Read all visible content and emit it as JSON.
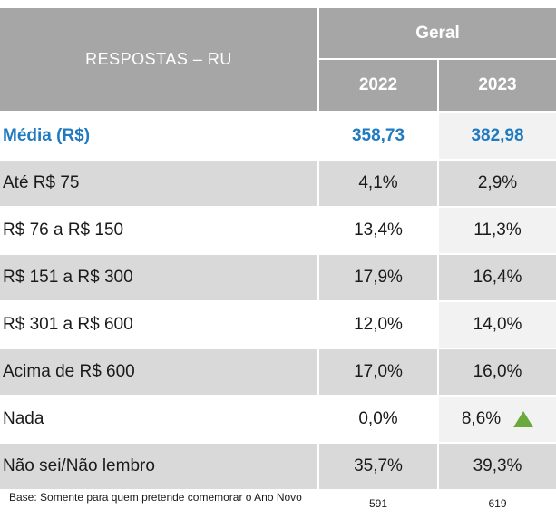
{
  "header": {
    "label": "RESPOSTAS  – RU",
    "group": "Geral",
    "col_2022": "2022",
    "col_2023": "2023"
  },
  "rows": [
    {
      "label": "Média (R$)",
      "v2022": "358,73",
      "v2023": "382,98"
    },
    {
      "label": "Até R$ 75",
      "v2022": "4,1%",
      "v2023": "2,9%"
    },
    {
      "label": "R$ 76 a R$ 150",
      "v2022": "13,4%",
      "v2023": "11,3%"
    },
    {
      "label": "R$ 151 a R$ 300",
      "v2022": "17,9%",
      "v2023": "16,4%"
    },
    {
      "label": "R$ 301 a R$ 600",
      "v2022": "12,0%",
      "v2023": "14,0%"
    },
    {
      "label": "Acima de R$ 600",
      "v2022": "17,0%",
      "v2023": "16,0%"
    },
    {
      "label": "Nada",
      "v2022": "0,0%",
      "v2023": "8,6%",
      "indicator": "up-triangle-icon"
    },
    {
      "label": "Não sei/Não lembro",
      "v2022": "35,7%",
      "v2023": "39,3%"
    }
  ],
  "footer": {
    "note": "Base: Somente para quem pretende comemorar o Ano Novo",
    "base_2022": "591",
    "base_2023": "619"
  },
  "colors": {
    "header_bg": "#a6a6a6",
    "highlight_text": "#1f7ac0",
    "up_indicator": "#6aaa3c"
  }
}
